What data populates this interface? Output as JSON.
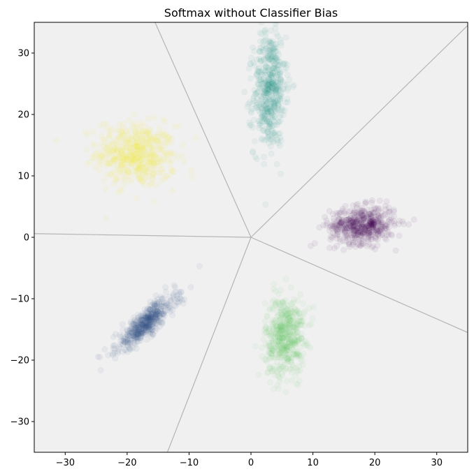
{
  "chart_data": {
    "type": "scatter",
    "title": "Softmax without Classifier Bias",
    "xlabel": "",
    "ylabel": "",
    "xlim": [
      -35,
      35
    ],
    "ylim": [
      -35,
      35
    ],
    "xticks": [
      -30,
      -20,
      -10,
      0,
      10,
      20,
      30
    ],
    "yticks": [
      -30,
      -20,
      -10,
      0,
      10,
      20,
      30
    ],
    "grid": false,
    "legend": "none",
    "background_color": "#f0f0f0",
    "boundary_color": "#b4b4b4",
    "decision_boundaries": [
      {
        "from": [
          0,
          0
        ],
        "to": [
          -15.5,
          35
        ]
      },
      {
        "from": [
          0,
          0
        ],
        "to": [
          35,
          34.5
        ]
      },
      {
        "from": [
          0,
          0
        ],
        "to": [
          35,
          -15.5
        ]
      },
      {
        "from": [
          0,
          0
        ],
        "to": [
          -13.5,
          -35
        ]
      },
      {
        "from": [
          0,
          0
        ],
        "to": [
          -35,
          0.6
        ]
      }
    ],
    "clusters": [
      {
        "color": "#fde725",
        "center": [
          -18.5,
          13.5
        ],
        "spread": [
          3.2,
          2.6
        ],
        "corr": -0.1
      },
      {
        "color": "#21918c",
        "center": [
          3.0,
          24.0
        ],
        "spread": [
          1.3,
          4.8
        ],
        "corr": 0.1
      },
      {
        "color": "#440154",
        "center": [
          18.0,
          2.0
        ],
        "spread": [
          2.6,
          1.5
        ],
        "corr": 0.05
      },
      {
        "color": "#5ec962",
        "center": [
          5.5,
          -16.0
        ],
        "spread": [
          1.6,
          3.2
        ],
        "corr": 0.1
      },
      {
        "color": "#3b528b",
        "center": [
          -17.0,
          -14.0
        ],
        "spread": [
          2.4,
          2.2
        ],
        "corr": 0.85
      }
    ]
  }
}
